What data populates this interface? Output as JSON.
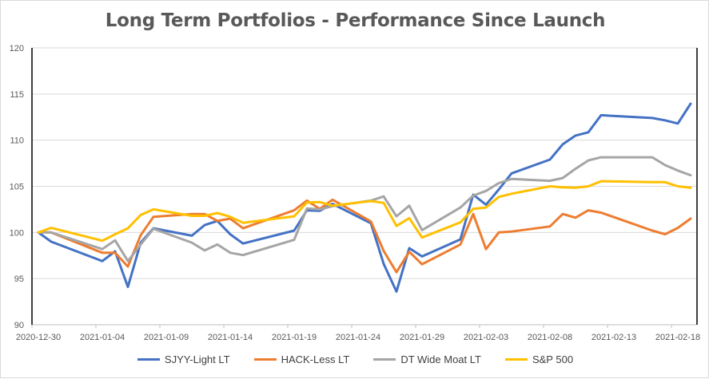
{
  "chart_data": {
    "type": "line",
    "title": "Long Term Portfolios - Performance Since Launch",
    "xlabel": "",
    "ylabel": "",
    "x_type": "date",
    "xlim": [
      "2020-12-30",
      "2021-02-19"
    ],
    "x_ticks": [
      "2020-12-30",
      "2021-01-04",
      "2021-01-09",
      "2021-01-14",
      "2021-01-19",
      "2021-01-24",
      "2021-01-29",
      "2021-02-03",
      "2021-02-08",
      "2021-02-13",
      "2021-02-18"
    ],
    "ylim": [
      90,
      120
    ],
    "y_ticks": [
      90,
      95,
      100,
      105,
      110,
      115,
      120
    ],
    "grid": "horizontal",
    "legend_position": "bottom",
    "x": [
      "2020-12-30",
      "2020-12-31",
      "2021-01-04",
      "2021-01-05",
      "2021-01-06",
      "2021-01-07",
      "2021-01-08",
      "2021-01-11",
      "2021-01-12",
      "2021-01-13",
      "2021-01-14",
      "2021-01-15",
      "2021-01-19",
      "2021-01-20",
      "2021-01-21",
      "2021-01-22",
      "2021-01-25",
      "2021-01-26",
      "2021-01-27",
      "2021-01-28",
      "2021-01-29",
      "2021-02-01",
      "2021-02-02",
      "2021-02-03",
      "2021-02-04",
      "2021-02-05",
      "2021-02-08",
      "2021-02-09",
      "2021-02-10",
      "2021-02-11",
      "2021-02-12",
      "2021-02-16",
      "2021-02-17",
      "2021-02-18",
      "2021-02-19"
    ],
    "series": [
      {
        "name": "SJYY-Light LT",
        "color": "#4472C4",
        "values": [
          100,
          99.0,
          96.9,
          97.95,
          94.1,
          98.9,
          100.45,
          99.65,
          100.8,
          101.25,
          99.8,
          98.8,
          100.2,
          102.4,
          102.35,
          103.1,
          101.0,
          96.6,
          93.6,
          98.3,
          97.4,
          99.25,
          104.1,
          103.0,
          104.65,
          106.4,
          107.9,
          109.55,
          110.5,
          110.85,
          112.7,
          112.4,
          112.15,
          111.8,
          113.95
        ]
      },
      {
        "name": "HACK-Less LT",
        "color": "#ED7D31",
        "values": [
          100,
          100.0,
          97.8,
          97.8,
          96.3,
          99.7,
          101.7,
          102.0,
          102.0,
          101.25,
          101.5,
          100.45,
          102.4,
          103.45,
          102.55,
          103.55,
          101.2,
          98.0,
          95.7,
          97.9,
          96.55,
          98.7,
          102.0,
          98.2,
          100.0,
          100.1,
          100.65,
          102.0,
          101.6,
          102.4,
          102.15,
          100.2,
          99.8,
          100.5,
          101.5
        ]
      },
      {
        "name": "DT Wide Moat LT",
        "color": "#A5A5A5",
        "values": [
          100,
          100.0,
          98.2,
          99.15,
          96.9,
          98.7,
          100.4,
          98.9,
          98.05,
          98.7,
          97.8,
          97.55,
          99.2,
          102.6,
          102.5,
          102.85,
          103.45,
          103.9,
          101.75,
          102.9,
          100.25,
          102.7,
          104.0,
          104.5,
          105.35,
          105.8,
          105.6,
          105.9,
          106.9,
          107.8,
          108.15,
          108.15,
          107.3,
          106.7,
          106.2
        ]
      },
      {
        "name": "S&P 500",
        "color": "#FFC000",
        "values": [
          100,
          100.5,
          99.1,
          99.8,
          100.45,
          101.9,
          102.5,
          101.8,
          101.8,
          102.1,
          101.7,
          101.05,
          101.75,
          103.25,
          103.3,
          102.9,
          103.4,
          103.2,
          100.7,
          101.55,
          99.45,
          101.1,
          102.55,
          102.7,
          103.85,
          104.2,
          105.0,
          104.9,
          104.85,
          105.0,
          105.55,
          105.45,
          105.45,
          105.0,
          104.85
        ]
      }
    ]
  }
}
